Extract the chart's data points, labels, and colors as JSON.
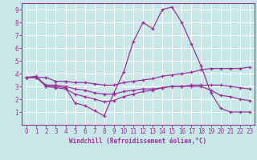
{
  "xlabel": "Windchill (Refroidissement éolien,°C)",
  "bg_color": "#c8e8e8",
  "grid_color": "#ffffff",
  "line_color": "#993399",
  "spine_color": "#aa44aa",
  "xlim": [
    -0.5,
    23.5
  ],
  "ylim": [
    0,
    9.5
  ],
  "xticks": [
    0,
    1,
    2,
    3,
    4,
    5,
    6,
    7,
    8,
    9,
    10,
    11,
    12,
    13,
    14,
    15,
    16,
    17,
    18,
    19,
    20,
    21,
    22,
    23
  ],
  "yticks": [
    1,
    2,
    3,
    4,
    5,
    6,
    7,
    8,
    9
  ],
  "line1_x": [
    0,
    1,
    2,
    3,
    4,
    5,
    6,
    7,
    8,
    9,
    10,
    11,
    12,
    13,
    14,
    15,
    16,
    17,
    18,
    19,
    20,
    21,
    22,
    23
  ],
  "line1_y": [
    3.7,
    3.8,
    3.0,
    3.0,
    2.9,
    1.7,
    1.5,
    1.1,
    0.7,
    2.5,
    4.1,
    6.5,
    8.0,
    7.5,
    9.0,
    9.2,
    8.0,
    6.3,
    4.6,
    2.5,
    1.3,
    1.0,
    1.0,
    1.0
  ],
  "line2_x": [
    0,
    1,
    2,
    3,
    4,
    5,
    6,
    7,
    8,
    9,
    10,
    11,
    12,
    13,
    14,
    15,
    16,
    17,
    18,
    19,
    20,
    21,
    22,
    23
  ],
  "line2_y": [
    3.7,
    3.7,
    3.7,
    3.4,
    3.4,
    3.3,
    3.3,
    3.2,
    3.1,
    3.1,
    3.3,
    3.4,
    3.5,
    3.6,
    3.8,
    3.9,
    4.0,
    4.1,
    4.3,
    4.4,
    4.4,
    4.4,
    4.4,
    4.5
  ],
  "line3_x": [
    0,
    1,
    2,
    3,
    4,
    5,
    6,
    7,
    8,
    9,
    10,
    11,
    12,
    13,
    14,
    15,
    16,
    17,
    18,
    19,
    20,
    21,
    22,
    23
  ],
  "line3_y": [
    3.7,
    3.7,
    3.1,
    3.1,
    3.0,
    2.8,
    2.7,
    2.5,
    2.4,
    2.4,
    2.6,
    2.7,
    2.8,
    2.8,
    2.9,
    3.0,
    3.0,
    3.1,
    3.1,
    3.1,
    3.1,
    3.0,
    2.9,
    2.8
  ],
  "line4_x": [
    0,
    1,
    2,
    3,
    4,
    5,
    6,
    7,
    8,
    9,
    10,
    11,
    12,
    13,
    14,
    15,
    16,
    17,
    18,
    19,
    20,
    21,
    22,
    23
  ],
  "line4_y": [
    3.7,
    3.7,
    3.0,
    2.9,
    2.8,
    2.4,
    2.2,
    2.0,
    1.8,
    1.9,
    2.2,
    2.4,
    2.6,
    2.7,
    2.9,
    3.0,
    3.0,
    3.0,
    3.0,
    2.7,
    2.3,
    2.2,
    2.0,
    1.9
  ],
  "tick_fontsize": 5.5,
  "xlabel_fontsize": 5.5,
  "marker_size": 3,
  "line_width": 0.9
}
